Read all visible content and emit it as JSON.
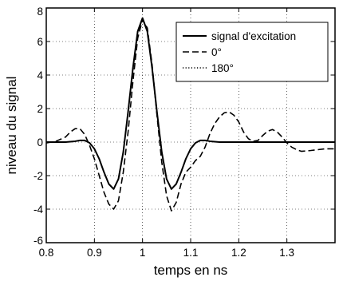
{
  "chart_data": {
    "type": "line",
    "title": "",
    "xlabel": "temps en ns",
    "ylabel": "niveau du signal",
    "xlim": [
      0.8,
      1.4
    ],
    "ylim": [
      -6,
      8
    ],
    "xticks": [
      0.8,
      0.9,
      1,
      1.1,
      1.2,
      1.3
    ],
    "xtick_labels": [
      "0.8",
      "0.9",
      "1",
      "1.1",
      "1.2",
      "1.3"
    ],
    "yticks": [
      -6,
      -4,
      -2,
      0,
      2,
      4,
      6,
      8
    ],
    "ytick_labels": [
      "-6",
      "-4",
      "-2",
      "0",
      "2",
      "4",
      "6",
      "8"
    ],
    "grid": true,
    "legend_position": "top-right",
    "series": [
      {
        "name": "signal d'excitation",
        "style": "solid",
        "color": "#000000",
        "x": [
          0.8,
          0.82,
          0.84,
          0.86,
          0.87,
          0.88,
          0.89,
          0.9,
          0.91,
          0.92,
          0.93,
          0.94,
          0.95,
          0.96,
          0.97,
          0.98,
          0.99,
          1.0,
          1.01,
          1.02,
          1.03,
          1.04,
          1.05,
          1.06,
          1.07,
          1.08,
          1.09,
          1.1,
          1.11,
          1.12,
          1.13,
          1.14,
          1.16,
          1.2,
          1.3,
          1.4
        ],
        "y": [
          0,
          0,
          0,
          0.05,
          0.1,
          0.1,
          -0.05,
          -0.4,
          -1.0,
          -1.8,
          -2.5,
          -2.8,
          -2.2,
          -0.6,
          1.8,
          4.4,
          6.6,
          7.4,
          6.6,
          4.4,
          1.8,
          -0.6,
          -2.2,
          -2.8,
          -2.5,
          -1.8,
          -1.0,
          -0.4,
          -0.05,
          0.1,
          0.1,
          0.05,
          0,
          0,
          0,
          0
        ]
      },
      {
        "name": "0°",
        "style": "dashed",
        "color": "#000000",
        "x": [
          0.8,
          0.82,
          0.84,
          0.85,
          0.86,
          0.87,
          0.88,
          0.89,
          0.9,
          0.91,
          0.92,
          0.93,
          0.94,
          0.95,
          0.96,
          0.97,
          0.98,
          0.99,
          1.0,
          1.01,
          1.02,
          1.03,
          1.04,
          1.05,
          1.06,
          1.07,
          1.08,
          1.09,
          1.1,
          1.11,
          1.12,
          1.13,
          1.14,
          1.15,
          1.16,
          1.17,
          1.18,
          1.19,
          1.2,
          1.21,
          1.22,
          1.23,
          1.24,
          1.25,
          1.26,
          1.27,
          1.28,
          1.29,
          1.3,
          1.31,
          1.32,
          1.33,
          1.35,
          1.38,
          1.4
        ],
        "y": [
          -0.05,
          0.05,
          0.3,
          0.6,
          0.8,
          0.8,
          0.45,
          -0.2,
          -1.0,
          -2.0,
          -3.0,
          -3.7,
          -4.0,
          -3.5,
          -1.8,
          0.6,
          3.6,
          6.2,
          7.3,
          6.8,
          4.6,
          1.6,
          -1.2,
          -3.2,
          -4.1,
          -3.6,
          -2.5,
          -1.8,
          -1.5,
          -1.1,
          -0.85,
          -0.3,
          0.5,
          1.1,
          1.5,
          1.75,
          1.8,
          1.6,
          1.2,
          0.6,
          0.2,
          0.05,
          0.1,
          0.4,
          0.65,
          0.75,
          0.6,
          0.3,
          -0.05,
          -0.3,
          -0.45,
          -0.55,
          -0.5,
          -0.4,
          -0.4
        ]
      },
      {
        "name": "180°",
        "style": "dotted",
        "color": "#000000",
        "x": [
          0.8,
          0.82,
          0.84,
          0.86,
          0.87,
          0.88,
          0.89,
          0.9,
          0.91,
          0.92,
          0.93,
          0.94,
          0.95,
          0.96,
          0.97,
          0.98,
          0.99,
          1.0,
          1.01,
          1.02,
          1.03,
          1.04,
          1.05,
          1.06,
          1.07,
          1.08,
          1.09,
          1.1,
          1.11,
          1.12,
          1.13,
          1.14,
          1.16,
          1.2,
          1.3,
          1.4
        ],
        "y": [
          0,
          0,
          0,
          0.05,
          0.1,
          0.1,
          -0.05,
          -0.4,
          -1.0,
          -1.8,
          -2.5,
          -2.8,
          -2.2,
          -0.6,
          1.8,
          4.4,
          6.6,
          7.4,
          6.6,
          4.4,
          1.8,
          -0.6,
          -2.2,
          -2.8,
          -2.5,
          -1.8,
          -1.0,
          -0.4,
          -0.05,
          0.1,
          0.1,
          0.05,
          0,
          0,
          0,
          0
        ]
      }
    ]
  }
}
